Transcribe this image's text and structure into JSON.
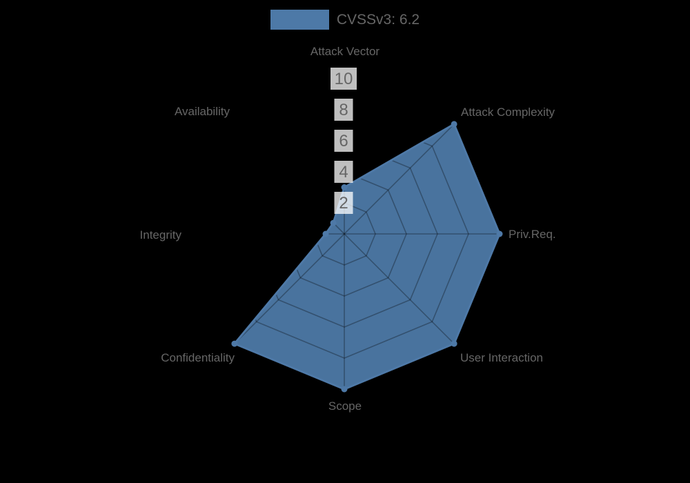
{
  "chart_data": {
    "type": "radar",
    "title": "",
    "categories": [
      "Attack Vector",
      "Attack Complexity",
      "Priv.Req.",
      "User Interaction",
      "Scope",
      "Confidentiality",
      "Integrity",
      "Availability"
    ],
    "series": [
      {
        "name": "CVSSv3: 6.2",
        "values": [
          3,
          10,
          10,
          10,
          10,
          10,
          1.2,
          1
        ]
      }
    ],
    "ticks": [
      2,
      4,
      6,
      8,
      10
    ],
    "rmin": 0,
    "rmax": 10,
    "grid": true,
    "legend_position": "top",
    "colors": {
      "background": "#000000",
      "series_fill": "#4d79a7",
      "series_stroke": "#4e79a7",
      "grid_line": "rgba(0,0,0,0.30)",
      "label_text": "#666666",
      "tick_text": "#666666",
      "tick_backdrop": "rgba(255,255,255,0.75)"
    }
  },
  "legend": {
    "label": "CVSSv3: 6.2"
  }
}
